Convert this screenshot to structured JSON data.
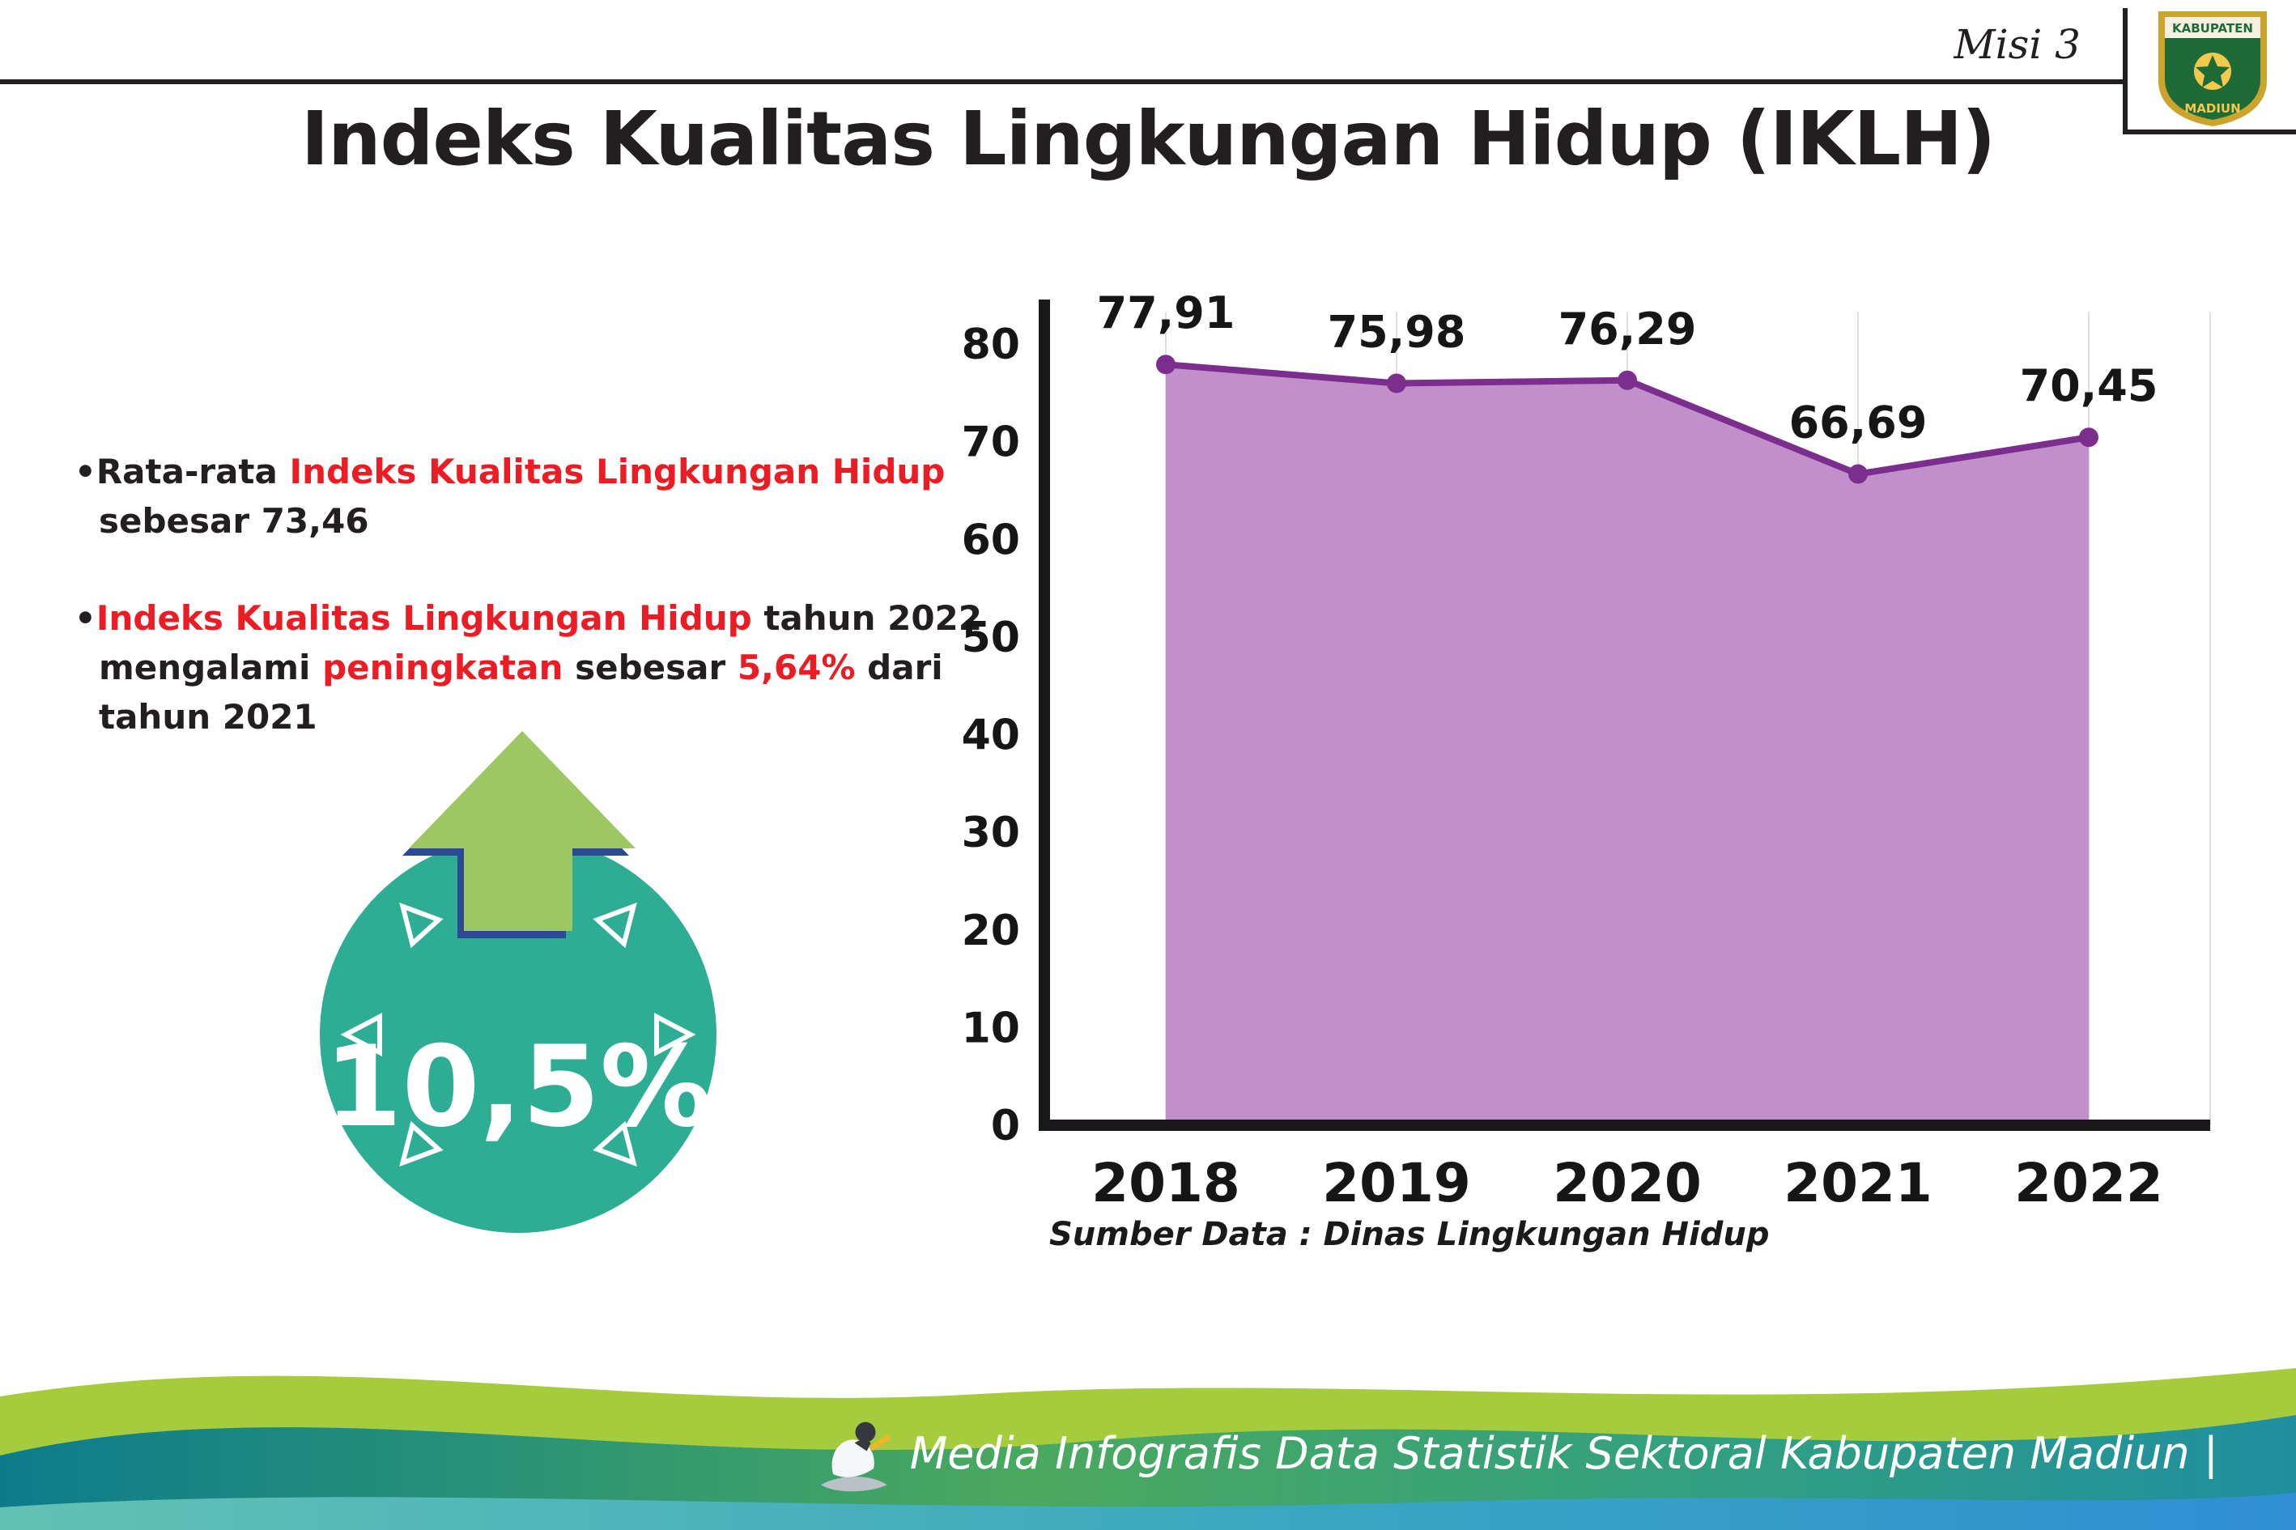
{
  "header": {
    "misi": "Misi 3"
  },
  "logo": {
    "top": "KABUPATEN",
    "bottom": "MADIUN"
  },
  "title": "Indeks Kualitas Lingkungan Hidup (IKLH)",
  "bullets": {
    "b1": {
      "seg1": "•Rata-rata ",
      "seg2": "Indeks Kualitas Lingkungan Hidup",
      "seg3": " sebesar 73,46"
    },
    "b2": {
      "seg1": "•",
      "seg2": "Indeks Kualitas Lingkungan Hidup",
      "seg3": " tahun 2022 mengalami ",
      "seg4": "peningkatan",
      "seg5": " sebesar ",
      "seg6": "5,64%",
      "seg7": " dari tahun 2021"
    }
  },
  "badge": {
    "value": "10,5%",
    "circle_color": "#2dae94",
    "arrow_color": "#9cc763",
    "arrow_shadow_color": "#2c4a94"
  },
  "chart_data": {
    "type": "area",
    "categories": [
      "2018",
      "2019",
      "2020",
      "2021",
      "2022"
    ],
    "values": [
      77.91,
      75.98,
      76.29,
      66.69,
      70.45
    ],
    "value_labels": [
      "77,91",
      "75,98",
      "76,29",
      "66,69",
      "70,45"
    ],
    "title": "",
    "xlabel": "",
    "ylabel": "",
    "ylim": [
      0,
      80
    ],
    "yticks": [
      0,
      10,
      20,
      30,
      40,
      50,
      60,
      70,
      80
    ],
    "grid": "vertical",
    "legend": "none",
    "area_color": "#c18fc9",
    "line_color": "#7b2e8d",
    "marker_color": "#7b2e8d",
    "axis_color": "#1b181c"
  },
  "source": "Sumber Data : Dinas Lingkungan Hidup",
  "footer": {
    "text": "Media Infografis Data Statistik Sektoral Kabupaten Madiun |"
  }
}
